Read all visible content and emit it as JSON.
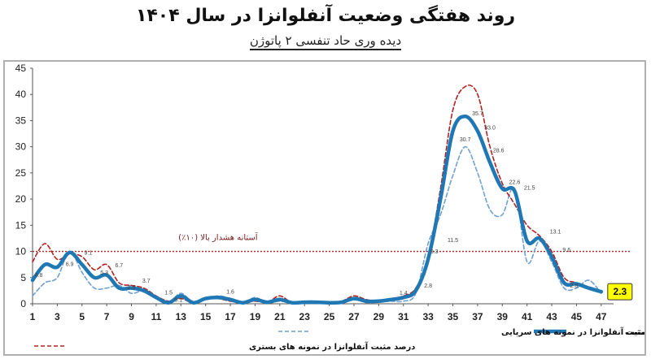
{
  "title": "روند هفتگی وضعیت آنفلوانزا در سال ۱۴۰۴",
  "subtitle": "دیده وری حاد تنفسی ۲ پاتوژن",
  "colors": {
    "average": "#1f77b4",
    "inpatient": "#b22222",
    "outpatient": "#6f9fcf",
    "threshold": "#b22222",
    "last_box": "#ffff00"
  },
  "chart_data": {
    "type": "line",
    "xlabel": "",
    "ylabel": "",
    "ylim": [
      0,
      45
    ],
    "xlim": [
      1,
      48
    ],
    "y_ticks": [
      0,
      5,
      10,
      15,
      20,
      25,
      30,
      35,
      40,
      45
    ],
    "x_ticks": [
      1,
      3,
      5,
      7,
      9,
      11,
      13,
      15,
      17,
      19,
      21,
      23,
      25,
      27,
      29,
      31,
      33,
      35,
      37,
      39,
      41,
      43,
      45,
      47
    ],
    "grid": false,
    "threshold": {
      "value": 10,
      "label": "آستانه هشدار بالا (۱۰٪)"
    },
    "series": [
      {
        "name": "میانگین آنفلوانزا مثبت",
        "style": "solid-thick",
        "x": [
          1,
          2,
          3,
          4,
          5,
          6,
          7,
          8,
          9,
          10,
          11,
          12,
          13,
          14,
          15,
          16,
          17,
          18,
          19,
          20,
          21,
          22,
          23,
          24,
          25,
          26,
          27,
          28,
          29,
          30,
          31,
          32,
          33,
          34,
          35,
          36,
          37,
          38,
          39,
          40,
          41,
          42,
          43,
          44,
          45,
          46,
          47
        ],
        "y": [
          4.5,
          7.5,
          7,
          9.8,
          7.5,
          5,
          5.5,
          3,
          3,
          2.5,
          1.2,
          0.2,
          1.5,
          0.2,
          1,
          1.2,
          0.8,
          0.2,
          0.8,
          0.3,
          0.8,
          0.2,
          0.3,
          0.3,
          0.2,
          0.3,
          1,
          0.5,
          0.5,
          0.8,
          1.2,
          2.5,
          8.5,
          20,
          33,
          35.8,
          33,
          27,
          22,
          21.5,
          12,
          12.5,
          9,
          4,
          3.8,
          3,
          2.3
        ]
      },
      {
        "name": "درصد مثبت آنفلوانزا در نمونه های بستری",
        "style": "dashed-dark-red",
        "x": [
          1,
          2,
          3,
          4,
          5,
          6,
          7,
          8,
          9,
          10,
          11,
          12,
          13,
          14,
          15,
          16,
          17,
          18,
          19,
          20,
          21,
          22,
          23,
          24,
          25,
          26,
          27,
          28,
          29,
          30,
          31,
          32,
          33,
          34,
          35,
          36,
          37,
          38,
          39,
          40,
          41,
          42,
          43,
          44,
          45,
          46,
          47
        ],
        "y": [
          8,
          11.5,
          8.5,
          9.5,
          9,
          6.5,
          7.5,
          4,
          3.5,
          3,
          1.5,
          0.5,
          1,
          0.2,
          1.2,
          1,
          0.5,
          0.2,
          0.5,
          0.3,
          1.5,
          0.2,
          0.5,
          0.3,
          0.3,
          0.5,
          1.5,
          0.8,
          0.5,
          1,
          1.5,
          3,
          9,
          22,
          37,
          41.5,
          40,
          30,
          23,
          19,
          15,
          13,
          10,
          5,
          4,
          3,
          2.5
        ]
      },
      {
        "name": "درصد مثبت آنفلوانزا در نمونه های سرپایی",
        "style": "dashed-light-blue",
        "x": [
          1,
          2,
          3,
          4,
          5,
          6,
          7,
          8,
          9,
          10,
          11,
          12,
          13,
          14,
          15,
          16,
          17,
          18,
          19,
          20,
          21,
          22,
          23,
          24,
          25,
          26,
          27,
          28,
          29,
          30,
          31,
          32,
          33,
          34,
          35,
          36,
          37,
          38,
          39,
          40,
          41,
          42,
          43,
          44,
          45,
          46,
          47
        ],
        "y": [
          1.5,
          4,
          5,
          10,
          6,
          3,
          3,
          3.5,
          2,
          2.5,
          1,
          0.2,
          2,
          0.2,
          0.8,
          1.5,
          1,
          0.2,
          1.2,
          0.2,
          0.5,
          0.2,
          0.5,
          0.5,
          0.2,
          0.2,
          1,
          0.2,
          0.5,
          0.5,
          0.5,
          2,
          11.5,
          17,
          24.5,
          30,
          25,
          18,
          17,
          22,
          8,
          12,
          8,
          3,
          3,
          4.5,
          2
        ]
      }
    ],
    "data_labels": [
      {
        "x": 1.5,
        "y": 4.8,
        "text": "4.8"
      },
      {
        "x": 4,
        "y": 6.9,
        "text": "6.9"
      },
      {
        "x": 5.5,
        "y": 9.1,
        "text": "9.1"
      },
      {
        "x": 6.8,
        "y": 5.3,
        "text": "5.3"
      },
      {
        "x": 8,
        "y": 6.7,
        "text": "6.7"
      },
      {
        "x": 9,
        "y": 2.5,
        "text": "2.5"
      },
      {
        "x": 10.2,
        "y": 3.7,
        "text": "3.7"
      },
      {
        "x": 12,
        "y": 1.5,
        "text": "1.5"
      },
      {
        "x": 12.8,
        "y": 0.1,
        "text": "0.1"
      },
      {
        "x": 17,
        "y": 1.6,
        "text": "1.6"
      },
      {
        "x": 31,
        "y": 1.4,
        "text": "1.4"
      },
      {
        "x": 33,
        "y": 2.8,
        "text": "2.8"
      },
      {
        "x": 33.5,
        "y": 9.3,
        "text": "9.3"
      },
      {
        "x": 35,
        "y": 11.5,
        "text": "11.5"
      },
      {
        "x": 36,
        "y": 30.7,
        "text": "30.7"
      },
      {
        "x": 37,
        "y": 35.7,
        "text": "35.7"
      },
      {
        "x": 38,
        "y": 33.0,
        "text": "33.0"
      },
      {
        "x": 38.7,
        "y": 28.6,
        "text": "28.6"
      },
      {
        "x": 40,
        "y": 22.6,
        "text": "22.6"
      },
      {
        "x": 41.2,
        "y": 21.5,
        "text": "21.5"
      },
      {
        "x": 43.3,
        "y": 13.1,
        "text": "13.1"
      },
      {
        "x": 44.2,
        "y": 9.6,
        "text": "9.6"
      },
      {
        "x": 44.8,
        "y": 2.8,
        "text": "2.8"
      }
    ],
    "last_value_label": "2.3",
    "legend_position": "bottom"
  }
}
